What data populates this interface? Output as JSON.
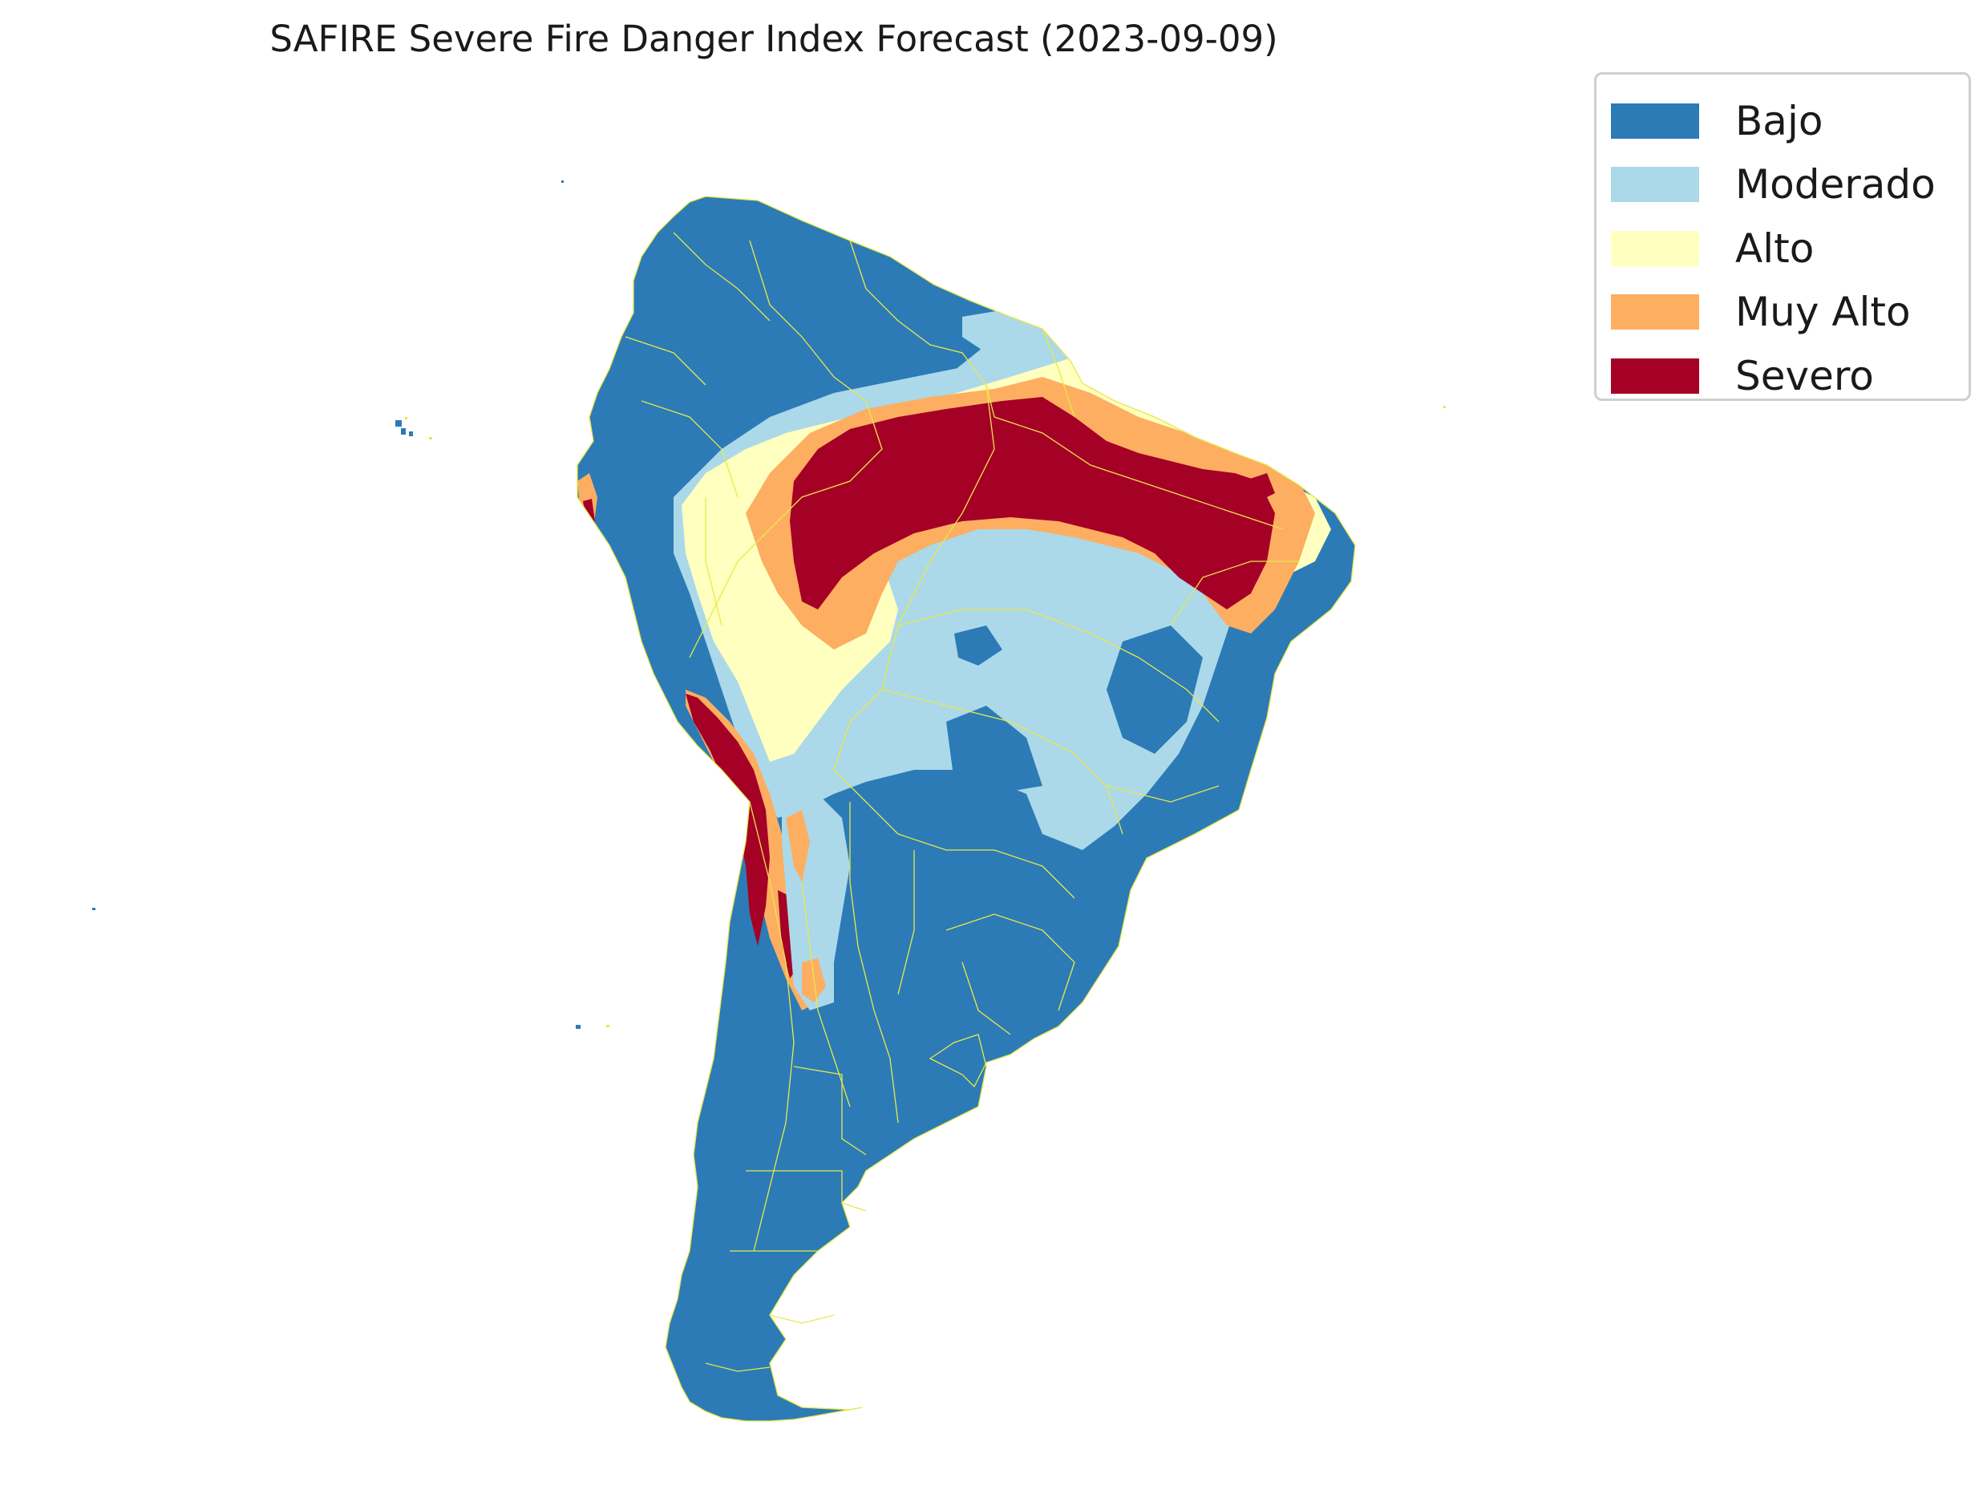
{
  "title": "SAFIRE Severe Fire Danger Index Forecast (2023-09-09)",
  "legend": [
    {
      "label": "Bajo",
      "color": "#2c7bb6"
    },
    {
      "label": "Moderado",
      "color": "#abd9e9"
    },
    {
      "label": "Alto",
      "color": "#ffffbf"
    },
    {
      "label": "Muy Alto",
      "color": "#fdae61"
    },
    {
      "label": "Severo",
      "color": "#a50026"
    }
  ],
  "boundary_color": "#e8e84a"
}
